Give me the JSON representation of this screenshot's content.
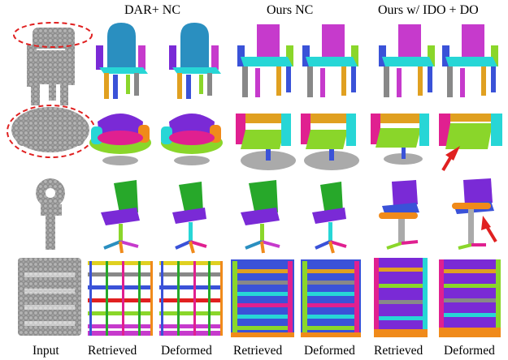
{
  "column_groups": [
    {
      "id": "dar",
      "label": "DAR+ NC"
    },
    {
      "id": "ours",
      "label": "Ours NC"
    },
    {
      "id": "ido",
      "label": "Ours w/ IDO + DO"
    }
  ],
  "column_labels": {
    "input": "Input",
    "dar_retrieved": "Retrieved",
    "dar_deformed": "Deformed",
    "ours_retrieved": "Retrieved",
    "ours_deformed": "Deformed",
    "ido_retrieved": "Retrieved",
    "ido_deformed": "Deformed"
  },
  "rows": [
    {
      "object": "chair"
    },
    {
      "object": "armchair"
    },
    {
      "object": "swivel-chair"
    },
    {
      "object": "shelf"
    }
  ],
  "colors": {
    "point_cloud": "#9a9a9a",
    "highlight_ellipse": "#e02020",
    "arrow": "#e02020",
    "part_palette": [
      "#2a8fc0",
      "#27d6d6",
      "#c63acc",
      "#7a2ad6",
      "#3a52d8",
      "#8ad62a",
      "#e0a020",
      "#f08a1a",
      "#e02090",
      "#888888"
    ]
  }
}
